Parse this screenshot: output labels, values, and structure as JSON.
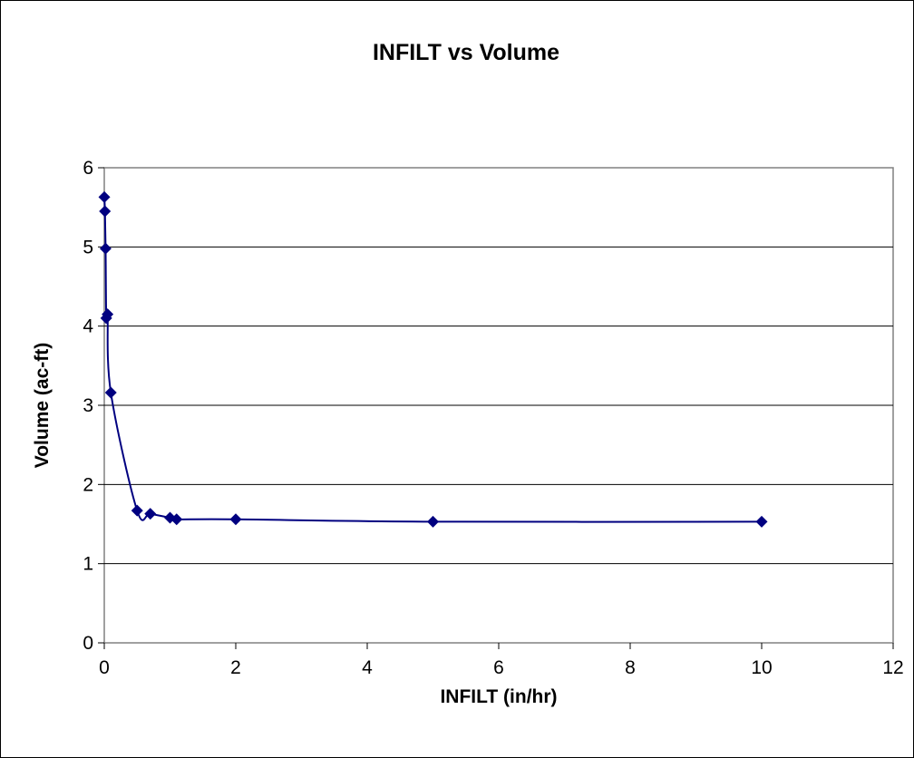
{
  "chart_data": {
    "type": "scatter",
    "title": "INFILT vs Volume",
    "xlabel": "INFILT (in/hr)",
    "ylabel": "Volume (ac-ft)",
    "xlim": [
      0,
      12
    ],
    "ylim": [
      0,
      6
    ],
    "xticks": [
      0,
      2,
      4,
      6,
      8,
      10,
      12
    ],
    "yticks": [
      0,
      1,
      2,
      3,
      4,
      5,
      6
    ],
    "grid": "horizontal",
    "legend": "none",
    "line": "smoothed",
    "color": "#000080",
    "series": [
      {
        "x": [
          0.001,
          0.01,
          0.02,
          0.03,
          0.05,
          0.1,
          0.5,
          0.7,
          1.0,
          1.1,
          2.0,
          5.0,
          10.0
        ],
        "y": [
          5.63,
          5.45,
          4.98,
          4.1,
          4.15,
          3.16,
          1.67,
          1.63,
          1.58,
          1.56,
          1.56,
          1.53,
          1.53
        ]
      }
    ]
  }
}
